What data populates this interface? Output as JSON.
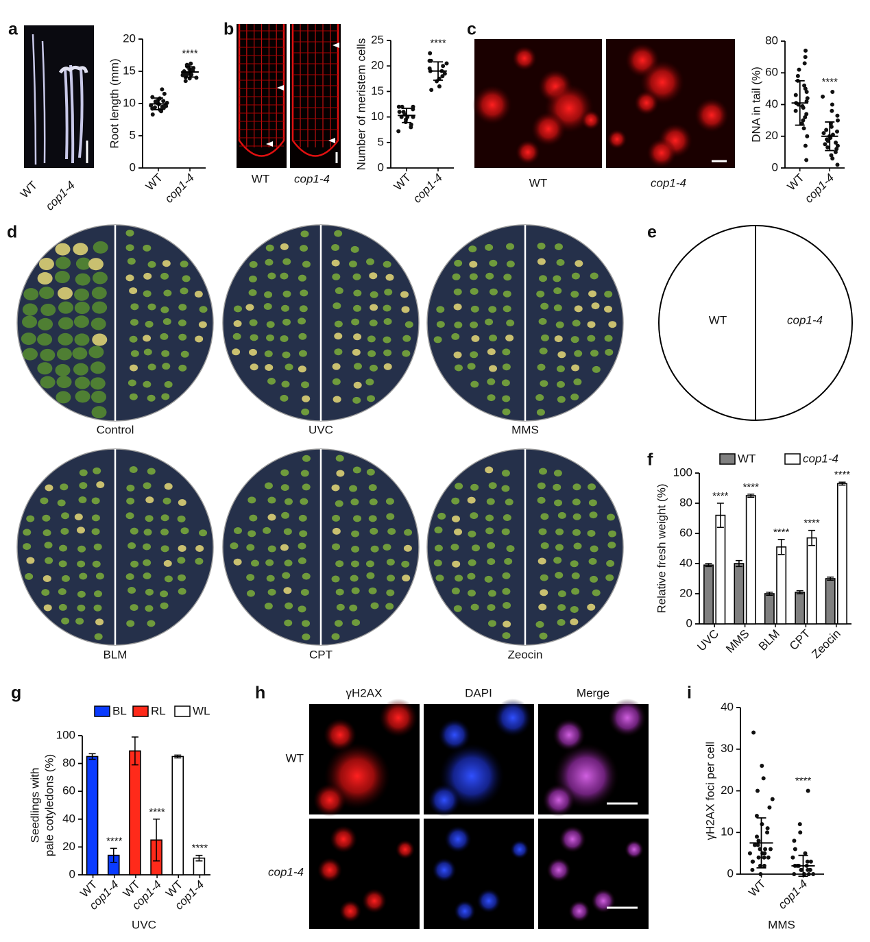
{
  "panels": [
    "a",
    "b",
    "c",
    "d",
    "e",
    "f",
    "g",
    "h",
    "i"
  ],
  "a_image_labels": [
    "WT",
    "cop1-4"
  ],
  "b_image_labels": [
    "WT",
    "cop1-4"
  ],
  "c_image_labels": [
    "WT",
    "cop1-4"
  ],
  "d_plates": [
    "Control",
    "UVC",
    "MMS",
    "BLM",
    "CPT",
    "Zeocin"
  ],
  "e_labels": [
    "WT",
    "cop1-4"
  ],
  "h_columns": [
    "γH2AX",
    "DAPI",
    "Merge"
  ],
  "h_rows": [
    "WT",
    "cop1-4"
  ],
  "chart_data": [
    {
      "type": "dot",
      "ylabel": "Root length (mm)",
      "categories": [
        "WT",
        "cop1-4"
      ],
      "values": [
        [
          8.3,
          8.8,
          9.0,
          9.2,
          9.4,
          9.5,
          9.6,
          9.8,
          9.9,
          10.0,
          10.1,
          10.3,
          10.5,
          10.8,
          11.0,
          11.5,
          12.2,
          9.3,
          9.7,
          10.4
        ],
        [
          13.5,
          13.9,
          14.1,
          14.3,
          14.5,
          14.6,
          14.7,
          14.8,
          14.9,
          15.0,
          15.1,
          15.3,
          15.5,
          15.7,
          16.0,
          16.2,
          14.4,
          15.2,
          14.0,
          15.9
        ]
      ],
      "means": [
        9.95,
        14.9
      ],
      "sd": [
        0.9,
        0.8
      ],
      "annotations": [
        null,
        "****"
      ],
      "ylim": [
        0,
        20
      ],
      "yticks": [
        0,
        5,
        10,
        15,
        20
      ]
    },
    {
      "type": "dot",
      "ylabel": "Number of meristem cells",
      "categories": [
        "WT",
        "cop1-4"
      ],
      "values": [
        [
          7.2,
          8,
          8.5,
          9,
          9.5,
          10,
          10,
          10.5,
          10.5,
          11,
          11,
          11.5,
          12,
          12,
          12,
          10
        ],
        [
          15.3,
          16,
          17,
          17.5,
          18,
          18.5,
          19,
          19,
          19.5,
          20,
          20.5,
          21,
          21,
          22.5
        ]
      ],
      "means": [
        10.3,
        19
      ],
      "sd": [
        1.4,
        1.8
      ],
      "annotations": [
        null,
        "****"
      ],
      "ylim": [
        0,
        25
      ],
      "yticks": [
        0,
        5,
        10,
        15,
        20,
        25
      ]
    },
    {
      "type": "dot",
      "ylabel": "DNA in tail (%)",
      "categories": [
        "WT",
        "cop1-4"
      ],
      "values": [
        [
          5,
          14,
          20,
          25,
          28,
          30,
          32,
          34,
          36,
          38,
          39,
          40,
          41,
          42,
          44,
          46,
          48,
          50,
          52,
          55,
          58,
          62,
          66,
          70,
          74
        ],
        [
          2,
          6,
          8,
          10,
          12,
          13,
          14,
          15,
          16,
          17,
          18,
          19,
          20,
          21,
          22,
          23,
          24,
          26,
          28,
          30,
          33,
          36,
          40,
          45,
          48
        ]
      ],
      "means": [
        41,
        20
      ],
      "sd": [
        14,
        9
      ],
      "annotations": [
        null,
        "****"
      ],
      "ylim": [
        0,
        80
      ],
      "yticks": [
        0,
        20,
        40,
        60,
        80
      ]
    },
    {
      "type": "bar",
      "ylabel": "Relative fresh weight (%)",
      "categories": [
        "UVC",
        "MMS",
        "BLM",
        "CPT",
        "Zeocin"
      ],
      "series": [
        {
          "name": "WT",
          "color": "#808080",
          "values": [
            39,
            40,
            20,
            21,
            30
          ],
          "errors": [
            1,
            2,
            1,
            1,
            1
          ]
        },
        {
          "name": "cop1-4",
          "color": "#ffffff",
          "values": [
            72,
            85,
            51,
            57,
            93
          ],
          "errors": [
            8,
            1,
            5,
            5,
            1
          ]
        }
      ],
      "annotations": [
        "****",
        "****",
        "****",
        "****",
        "****"
      ],
      "ylim": [
        0,
        100
      ],
      "yticks": [
        0,
        20,
        40,
        60,
        80,
        100
      ]
    },
    {
      "type": "bar",
      "ylabel": [
        "Seedlings with",
        "pale cotyledons (%)"
      ],
      "xlabel": "UVC",
      "categories": [
        "WT",
        "cop1-4",
        "WT",
        "cop1-4",
        "WT",
        "cop1-4"
      ],
      "series": [
        {
          "name": "BL",
          "color": "#0a3bff",
          "values": [
            85,
            14,
            null,
            null,
            null,
            null
          ],
          "errors": [
            2,
            5,
            null,
            null,
            null,
            null
          ]
        },
        {
          "name": "RL",
          "color": "#ff2a1a",
          "values": [
            null,
            null,
            89,
            25,
            null,
            null
          ],
          "errors": [
            null,
            null,
            10,
            15,
            null,
            null
          ]
        },
        {
          "name": "WL",
          "color": "#ffffff",
          "values": [
            null,
            null,
            null,
            null,
            85,
            12
          ],
          "errors": [
            null,
            null,
            null,
            null,
            1,
            2
          ]
        }
      ],
      "annotations": [
        null,
        "****",
        null,
        "****",
        null,
        "****"
      ],
      "ylim": [
        0,
        100
      ],
      "yticks": [
        0,
        20,
        40,
        60,
        80,
        100
      ]
    },
    {
      "type": "dot",
      "ylabel": "γH2AX foci per cell",
      "xlabel": "MMS",
      "categories": [
        "WT",
        "cop1-4"
      ],
      "values": [
        [
          0,
          1,
          2,
          2,
          3,
          3,
          4,
          4,
          4,
          5,
          5,
          5,
          6,
          6,
          6,
          7,
          7,
          8,
          9,
          10,
          11,
          12,
          14,
          16,
          18,
          20,
          23,
          26,
          34
        ],
        [
          0,
          0,
          0,
          0,
          1,
          1,
          1,
          1,
          1,
          2,
          2,
          2,
          2,
          3,
          3,
          4,
          5,
          6,
          8,
          10,
          12,
          20
        ]
      ],
      "means": [
        7.5,
        2
      ],
      "sd": [
        6,
        2.5
      ],
      "annotations": [
        null,
        "****"
      ],
      "ylim": [
        0,
        40
      ],
      "yticks": [
        0,
        10,
        20,
        30,
        40
      ]
    }
  ]
}
